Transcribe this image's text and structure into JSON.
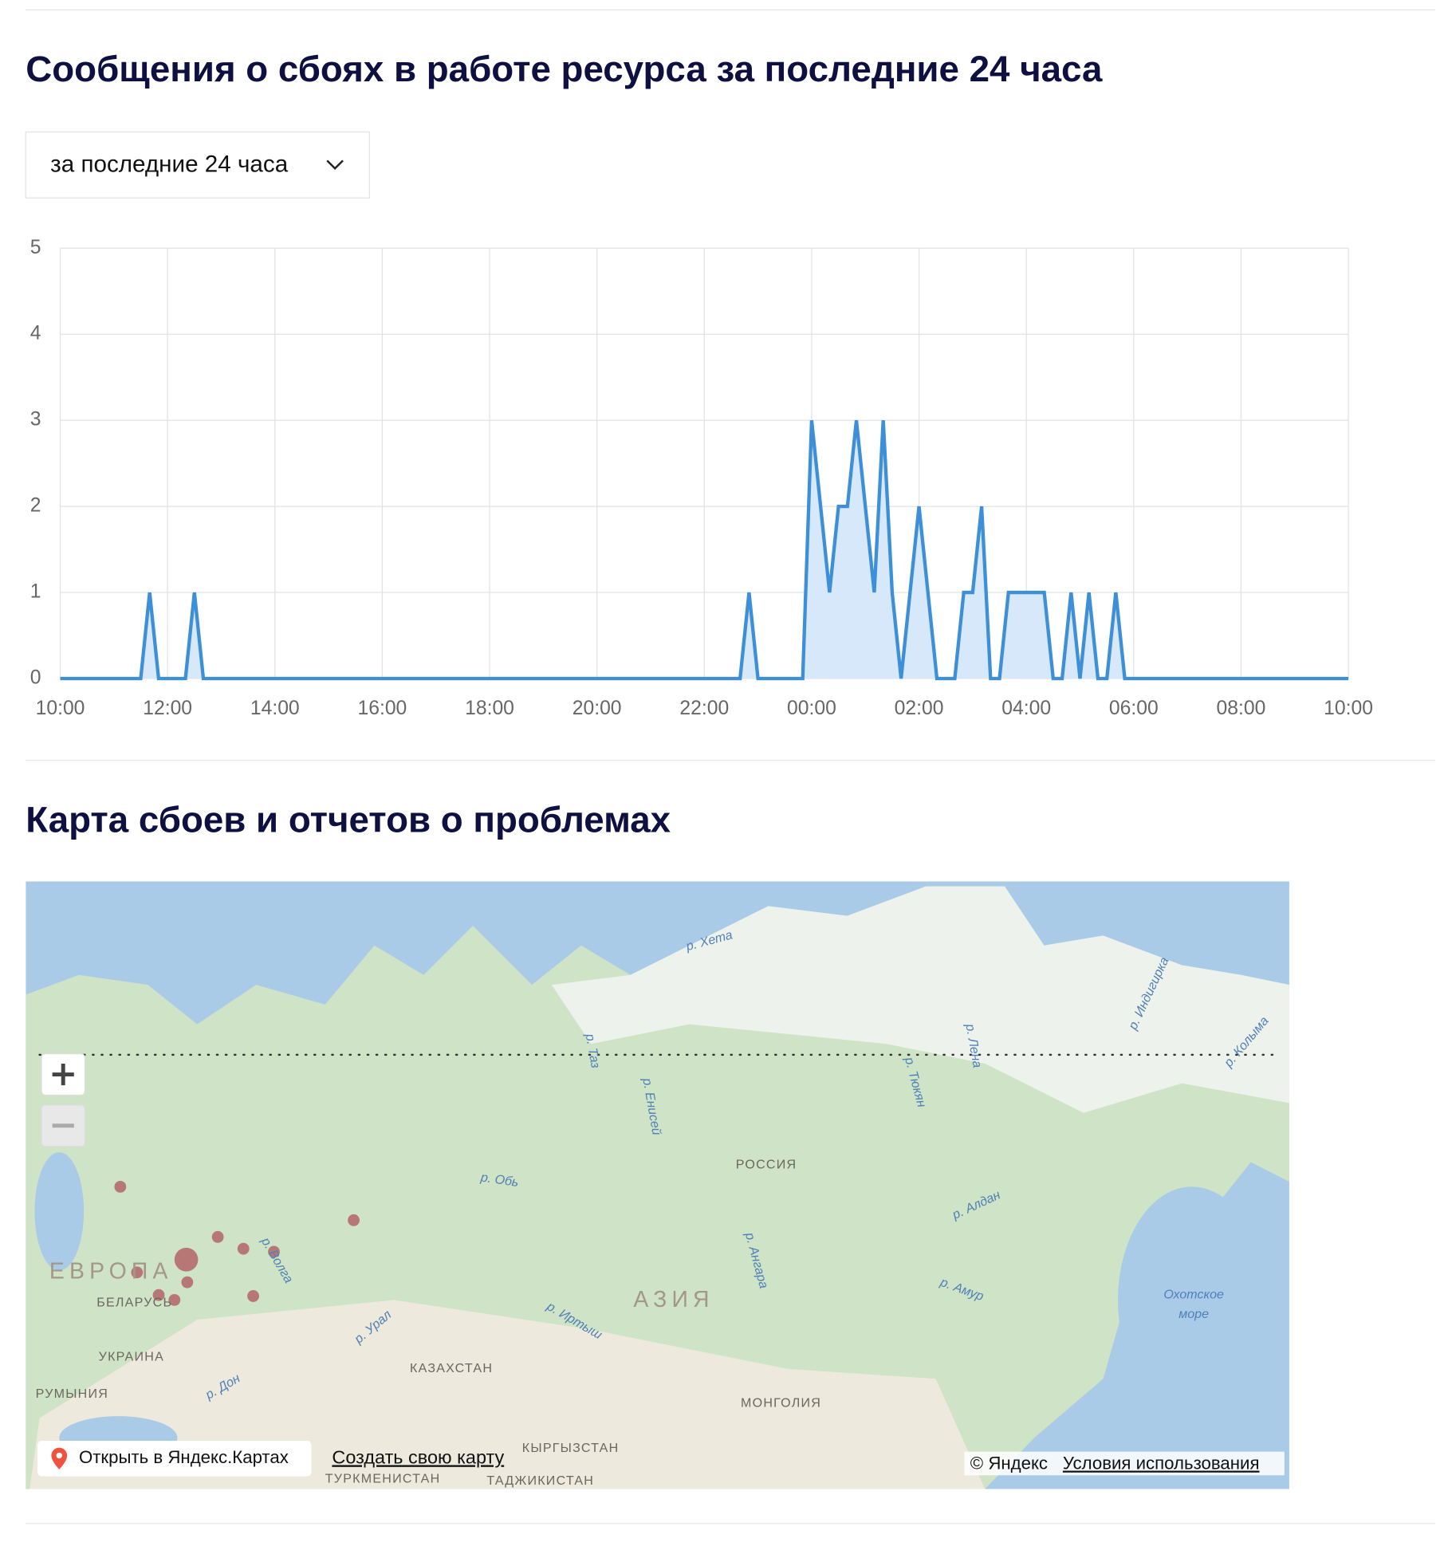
{
  "header": {
    "title": "Сообщения о сбоях в работе ресурса за последние 24 часа",
    "period_select": "за последние 24 часа"
  },
  "chart_data": {
    "type": "line",
    "categories": [
      "10:00",
      null,
      null,
      null,
      null,
      null,
      null,
      null,
      null,
      null,
      null,
      null,
      "12:00",
      null,
      null,
      null,
      null,
      null,
      null,
      null,
      null,
      null,
      null,
      null,
      "14:00",
      null,
      null,
      null,
      null,
      null,
      null,
      null,
      null,
      null,
      null,
      null,
      "16:00",
      null,
      null,
      null,
      null,
      null,
      null,
      null,
      null,
      null,
      null,
      null,
      "18:00",
      null,
      null,
      null,
      null,
      null,
      null,
      null,
      null,
      null,
      null,
      null,
      "20:00",
      null,
      null,
      null,
      null,
      null,
      null,
      null,
      null,
      null,
      null,
      null,
      "22:00",
      null,
      null,
      null,
      null,
      null,
      null,
      null,
      null,
      null,
      null,
      null,
      "00:00",
      null,
      null,
      null,
      null,
      null,
      null,
      null,
      null,
      null,
      null,
      null,
      "02:00",
      null,
      null,
      null,
      null,
      null,
      null,
      null,
      null,
      null,
      null,
      null,
      "04:00",
      null,
      null,
      null,
      null,
      null,
      null,
      null,
      null,
      null,
      null,
      null,
      "06:00",
      null,
      null,
      null,
      null,
      null,
      null,
      null,
      null,
      null,
      null,
      null,
      "08:00",
      null,
      null,
      null,
      null,
      null,
      null,
      null,
      null,
      null,
      null,
      null,
      "10:00"
    ],
    "values": [
      0,
      0,
      0,
      0,
      0,
      0,
      0,
      0,
      0,
      0,
      1,
      0,
      0,
      0,
      0,
      1,
      0,
      0,
      0,
      0,
      0,
      0,
      0,
      0,
      0,
      0,
      0,
      0,
      0,
      0,
      0,
      0,
      0,
      0,
      0,
      0,
      0,
      0,
      0,
      0,
      0,
      0,
      0,
      0,
      0,
      0,
      0,
      0,
      0,
      0,
      0,
      0,
      0,
      0,
      0,
      0,
      0,
      0,
      0,
      0,
      0,
      0,
      0,
      0,
      0,
      0,
      0,
      0,
      0,
      0,
      0,
      0,
      0,
      0,
      0,
      0,
      0,
      1,
      0,
      0,
      0,
      0,
      0,
      0,
      3,
      2,
      1,
      2,
      2,
      3,
      2,
      1,
      3,
      1,
      0,
      1,
      2,
      1,
      0,
      0,
      0,
      1,
      1,
      2,
      0,
      0,
      1,
      1,
      1,
      1,
      1,
      0,
      0,
      1,
      0,
      1,
      0,
      0,
      1,
      0,
      0,
      0,
      0,
      0,
      0,
      0,
      0,
      0,
      0,
      0,
      0,
      0,
      0,
      0,
      0,
      0,
      0,
      0,
      0,
      0,
      0,
      0,
      0,
      0,
      0
    ],
    "color": "#3d8fd8",
    "fill": "#d8e8fb",
    "ylim": [
      0,
      5
    ],
    "yticks": [
      0,
      1,
      2,
      3,
      4,
      5
    ],
    "grid": true
  },
  "map": {
    "title": "Карта сбоев и отчетов о проблемах",
    "labels": [
      "ЕВРОПА",
      "АЗИЯ",
      "РОССИЯ",
      "БЕЛАРУСЬ",
      "УКРАИНА",
      "РУМЫНИЯ",
      "КАЗАХСТАН",
      "МОНГОЛИЯ",
      "ТУРКМЕНИСТАН",
      "ТАДЖИКИСТАН",
      "КЫРГЫЗСТАН",
      "Охотское",
      "море",
      "р. Обь",
      "р. Волга",
      "р. Енисей",
      "р. Лена",
      "р. Амур",
      "р. Алдан",
      "р. Ангара",
      "р. Иртыш",
      "р. Урал",
      "р. Дон",
      "р. Хета",
      "р. Колыма",
      "р. Индигирка",
      "р. Тюкян",
      "р. Таз"
    ],
    "open_link": "Открыть в Яндекс.Картах",
    "create_link": "Создать свою карту",
    "copyright": "© Яндекс",
    "terms": "Условия использования"
  }
}
